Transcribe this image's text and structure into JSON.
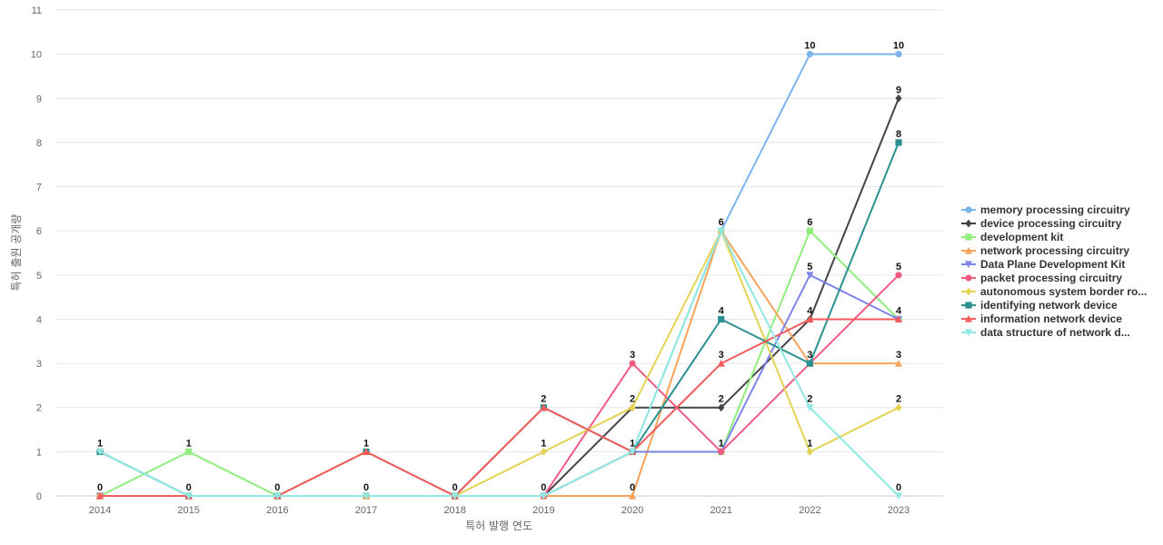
{
  "chart_data": {
    "type": "line",
    "title": "",
    "xlabel": "특허 발행 연도",
    "ylabel": "특허 출원 공개량",
    "x": [
      "2014",
      "2015",
      "2016",
      "2017",
      "2018",
      "2019",
      "2020",
      "2021",
      "2022",
      "2023"
    ],
    "ylim": [
      0,
      11
    ],
    "yticks": [
      0,
      1,
      2,
      3,
      4,
      5,
      6,
      7,
      8,
      9,
      10,
      11
    ],
    "grid": true,
    "legend_position": "right",
    "series": [
      {
        "name": "memory processing circuitry",
        "color": "#7cb5ec",
        "marker": "circle",
        "values": [
          1,
          0,
          0,
          0,
          0,
          0,
          1,
          6,
          10,
          10
        ],
        "labels": [
          "1",
          "",
          "",
          "",
          "",
          "",
          "",
          "",
          "10",
          "10"
        ]
      },
      {
        "name": "device processing circuitry",
        "color": "#434348",
        "marker": "diamond",
        "values": [
          0,
          0,
          0,
          0,
          0,
          0,
          2,
          2,
          4,
          9
        ],
        "labels": [
          "",
          "",
          "",
          "",
          "",
          "",
          "",
          "2",
          "",
          "9"
        ]
      },
      {
        "name": "development kit",
        "color": "#90ed7d",
        "marker": "square",
        "values": [
          0,
          1,
          0,
          0,
          0,
          0,
          1,
          1,
          6,
          4
        ],
        "labels": [
          "",
          "1",
          "",
          "",
          "",
          "",
          "",
          "",
          "6",
          ""
        ]
      },
      {
        "name": "network processing circuitry",
        "color": "#f7a35c",
        "marker": "triangle",
        "values": [
          0,
          0,
          0,
          0,
          0,
          0,
          0,
          6,
          3,
          3
        ],
        "labels": [
          "",
          "",
          "",
          "",
          "",
          "",
          "0",
          "",
          "",
          "3"
        ]
      },
      {
        "name": "Data Plane Development Kit",
        "color": "#8085e9",
        "marker": "triangle-down",
        "values": [
          0,
          0,
          0,
          0,
          0,
          0,
          1,
          1,
          5,
          4
        ],
        "labels": [
          "",
          "",
          "",
          "",
          "",
          "",
          "",
          "1",
          "5",
          ""
        ]
      },
      {
        "name": "packet processing circuitry",
        "color": "#f15c80",
        "marker": "circle",
        "values": [
          0,
          0,
          0,
          0,
          0,
          0,
          3,
          1,
          3,
          5
        ],
        "labels": [
          "",
          "",
          "",
          "",
          "",
          "0",
          "3",
          "",
          "",
          "5"
        ]
      },
      {
        "name": "autonomous system border ro...",
        "color": "#e4d354",
        "marker": "diamond",
        "values": [
          0,
          0,
          0,
          0,
          0,
          1,
          2,
          6,
          1,
          2
        ],
        "labels": [
          "",
          "",
          "",
          "",
          "",
          "1",
          "2",
          "",
          "1",
          "2"
        ]
      },
      {
        "name": "identifying network device",
        "color": "#2b908f",
        "marker": "square",
        "values": [
          1,
          0,
          0,
          1,
          0,
          2,
          1,
          4,
          3,
          8
        ],
        "labels": [
          "",
          "",
          "",
          "1",
          "",
          "2",
          "1",
          "4",
          "3",
          "8"
        ]
      },
      {
        "name": "information network device",
        "color": "#f45b5b",
        "marker": "triangle",
        "values": [
          0,
          0,
          0,
          1,
          0,
          2,
          1,
          3,
          4,
          4
        ],
        "labels": [
          "0",
          "0",
          "0",
          "",
          "0",
          "",
          "",
          "3",
          "4",
          "4"
        ]
      },
      {
        "name": "data structure of network d...",
        "color": "#91e8e1",
        "marker": "triangle-down",
        "values": [
          1,
          0,
          0,
          0,
          0,
          0,
          1,
          6,
          2,
          0
        ],
        "labels": [
          "",
          "",
          "",
          "0",
          "",
          "",
          "",
          "6",
          "2",
          "0"
        ]
      }
    ]
  }
}
